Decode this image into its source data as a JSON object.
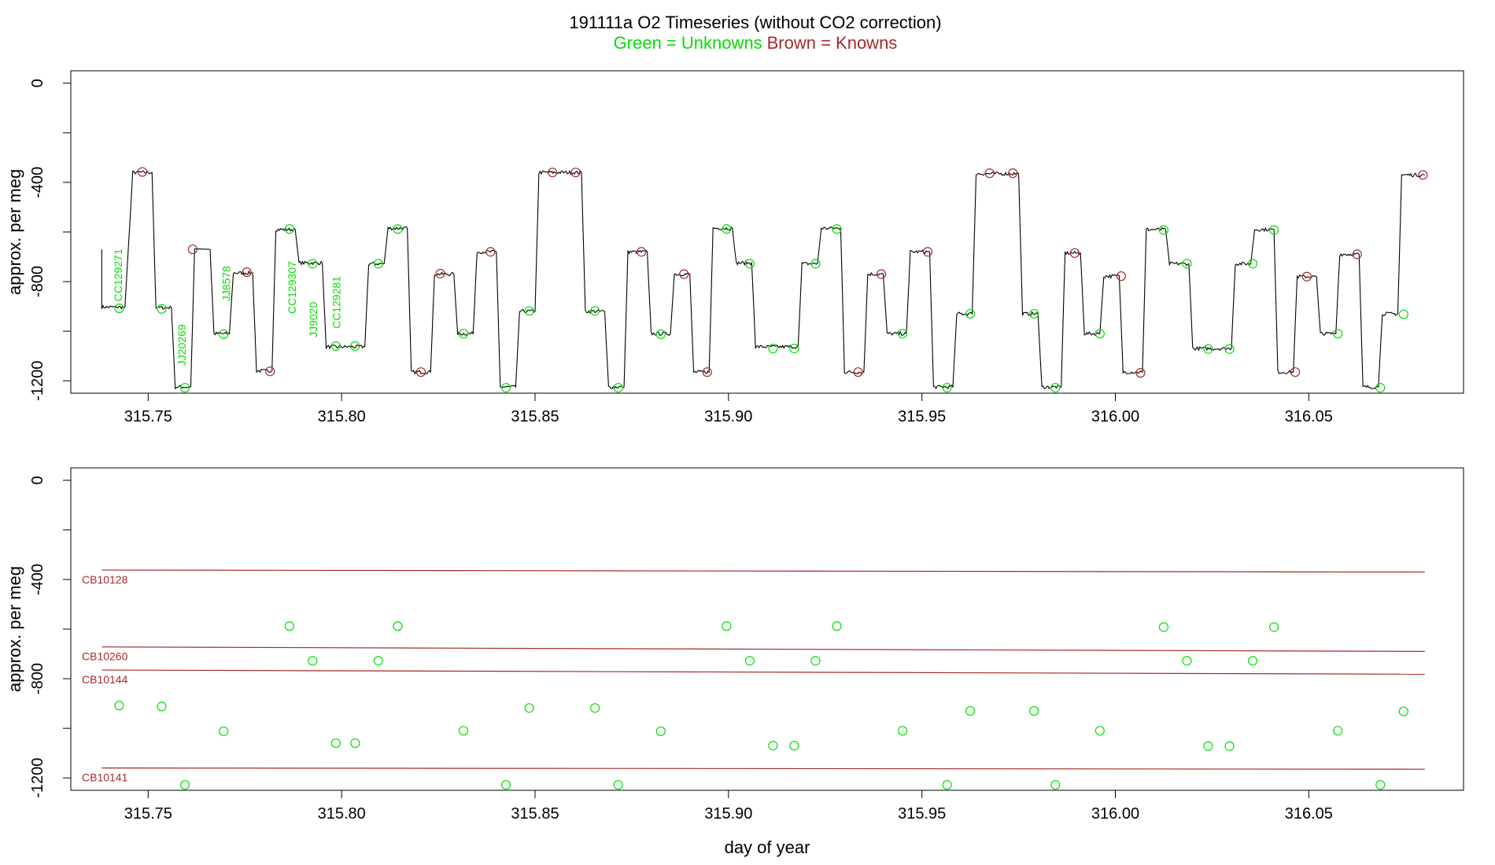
{
  "header": {
    "title": "191111a   O2 Timeseries (without CO2 correction)",
    "legend_unknowns": "Green = Unknowns",
    "legend_knowns": "Brown = Knowns"
  },
  "colors": {
    "unknown": "#00e000",
    "known": "#a52a2a",
    "line": "#000000"
  },
  "chart_data": [
    {
      "type": "line",
      "ylabel": "approx. per meg",
      "xlabel": "",
      "xlim": [
        315.73,
        316.09
      ],
      "ylim": [
        -1250,
        50
      ],
      "xticks": [
        315.75,
        315.8,
        315.85,
        315.9,
        315.95,
        316.0,
        316.05
      ],
      "xtick_labels": [
        "315.75",
        "315.80",
        "315.85",
        "315.90",
        "315.95",
        "316.00",
        "316.05"
      ],
      "yticks": [
        0,
        -200,
        -400,
        -600,
        -800,
        -1000,
        -1200
      ],
      "ytick_labels": [
        "0",
        "-400",
        "-800",
        "-1200"
      ],
      "ytick_label_values": [
        0,
        -400,
        -800,
        -1200
      ],
      "trace_steps": [
        [
          315.738,
          -903
        ],
        [
          315.744,
          -903
        ],
        [
          315.746,
          -360
        ],
        [
          315.751,
          -360
        ],
        [
          315.752,
          -905
        ],
        [
          315.756,
          -905
        ],
        [
          315.757,
          -1225
        ],
        [
          315.761,
          -1225
        ],
        [
          315.762,
          -668
        ],
        [
          315.766,
          -670
        ],
        [
          315.767,
          -1010
        ],
        [
          315.771,
          -1010
        ],
        [
          315.772,
          -765
        ],
        [
          315.777,
          -765
        ],
        [
          315.778,
          -1160
        ],
        [
          315.782,
          -1160
        ],
        [
          315.783,
          -590
        ],
        [
          315.788,
          -590
        ],
        [
          315.789,
          -725
        ],
        [
          315.795,
          -725
        ],
        [
          315.796,
          -1063
        ],
        [
          315.806,
          -1063
        ],
        [
          315.807,
          -728
        ],
        [
          315.811,
          -728
        ],
        [
          315.812,
          -585
        ],
        [
          315.817,
          -585
        ],
        [
          315.818,
          -1165
        ],
        [
          315.823,
          -1165
        ],
        [
          315.824,
          -770
        ],
        [
          315.829,
          -770
        ],
        [
          315.83,
          -1010
        ],
        [
          315.834,
          -1010
        ],
        [
          315.835,
          -680
        ],
        [
          315.84,
          -680
        ],
        [
          315.841,
          -1225
        ],
        [
          315.845,
          -1225
        ],
        [
          315.846,
          -920
        ],
        [
          315.85,
          -920
        ],
        [
          315.851,
          -360
        ],
        [
          315.862,
          -360
        ],
        [
          315.863,
          -920
        ],
        [
          315.868,
          -920
        ],
        [
          315.869,
          -1225
        ],
        [
          315.873,
          -1225
        ],
        [
          315.874,
          -680
        ],
        [
          315.879,
          -680
        ],
        [
          315.88,
          -1010
        ],
        [
          315.885,
          -1010
        ],
        [
          315.886,
          -770
        ],
        [
          315.89,
          -770
        ],
        [
          315.891,
          -1165
        ],
        [
          315.895,
          -1165
        ],
        [
          315.896,
          -585
        ],
        [
          315.901,
          -585
        ],
        [
          315.902,
          -725
        ],
        [
          315.906,
          -725
        ],
        [
          315.907,
          -1063
        ],
        [
          315.918,
          -1063
        ],
        [
          315.919,
          -728
        ],
        [
          315.923,
          -728
        ],
        [
          315.924,
          -585
        ],
        [
          315.929,
          -585
        ],
        [
          315.93,
          -1165
        ],
        [
          315.935,
          -1165
        ],
        [
          315.936,
          -770
        ],
        [
          315.94,
          -770
        ],
        [
          315.941,
          -1010
        ],
        [
          315.946,
          -1010
        ],
        [
          315.947,
          -680
        ],
        [
          315.952,
          -680
        ],
        [
          315.953,
          -1225
        ],
        [
          315.958,
          -1225
        ],
        [
          315.959,
          -930
        ],
        [
          315.963,
          -930
        ],
        [
          315.964,
          -365
        ],
        [
          315.975,
          -365
        ],
        [
          315.976,
          -930
        ],
        [
          315.98,
          -930
        ],
        [
          315.981,
          -1225
        ],
        [
          315.986,
          -1225
        ],
        [
          315.987,
          -685
        ],
        [
          315.991,
          -685
        ],
        [
          315.992,
          -1010
        ],
        [
          315.996,
          -1010
        ],
        [
          315.997,
          -778
        ],
        [
          316.001,
          -778
        ],
        [
          316.002,
          -1165
        ],
        [
          316.007,
          -1165
        ],
        [
          316.008,
          -590
        ],
        [
          316.013,
          -590
        ],
        [
          316.014,
          -728
        ],
        [
          316.019,
          -728
        ],
        [
          316.02,
          -1070
        ],
        [
          316.03,
          -1070
        ],
        [
          316.031,
          -728
        ],
        [
          316.035,
          -728
        ],
        [
          316.036,
          -590
        ],
        [
          316.041,
          -590
        ],
        [
          316.042,
          -1165
        ],
        [
          316.046,
          -1165
        ],
        [
          316.047,
          -780
        ],
        [
          316.052,
          -780
        ],
        [
          316.053,
          -1010
        ],
        [
          316.057,
          -1010
        ],
        [
          316.058,
          -690
        ],
        [
          316.063,
          -690
        ],
        [
          316.064,
          -1225
        ],
        [
          316.068,
          -1225
        ],
        [
          316.069,
          -930
        ],
        [
          316.073,
          -930
        ],
        [
          316.074,
          -370
        ],
        [
          316.08,
          -370
        ]
      ],
      "known_points": [
        [
          315.7485,
          -358
        ],
        [
          315.7615,
          -670
        ],
        [
          315.7755,
          -762
        ],
        [
          315.7815,
          -1162
        ],
        [
          315.8205,
          -1165
        ],
        [
          315.8255,
          -768
        ],
        [
          315.8385,
          -680
        ],
        [
          315.8545,
          -360
        ],
        [
          315.8605,
          -360
        ],
        [
          315.8775,
          -680
        ],
        [
          315.8885,
          -770
        ],
        [
          315.8945,
          -1165
        ],
        [
          315.9335,
          -1165
        ],
        [
          315.9395,
          -770
        ],
        [
          315.9515,
          -680
        ],
        [
          315.9675,
          -363
        ],
        [
          315.9735,
          -363
        ],
        [
          315.9895,
          -685
        ],
        [
          316.0015,
          -778
        ],
        [
          316.0065,
          -1168
        ],
        [
          316.0465,
          -1165
        ],
        [
          316.0495,
          -780
        ],
        [
          316.0625,
          -690
        ],
        [
          316.0795,
          -370
        ]
      ],
      "unknown_points": [
        [
          315.7425,
          -908
        ],
        [
          315.7535,
          -910
        ],
        [
          315.7595,
          -1228
        ],
        [
          315.7695,
          -1012
        ],
        [
          315.7865,
          -588
        ],
        [
          315.7925,
          -728
        ],
        [
          315.7985,
          -1060
        ],
        [
          315.8035,
          -1060
        ],
        [
          315.8095,
          -728
        ],
        [
          315.8145,
          -588
        ],
        [
          315.8315,
          -1010
        ],
        [
          315.8425,
          -1228
        ],
        [
          315.8485,
          -918
        ],
        [
          315.8655,
          -918
        ],
        [
          315.8715,
          -1228
        ],
        [
          315.8825,
          -1012
        ],
        [
          315.8995,
          -588
        ],
        [
          315.9055,
          -728
        ],
        [
          315.9115,
          -1070
        ],
        [
          315.917,
          -1070
        ],
        [
          315.9225,
          -728
        ],
        [
          315.928,
          -588
        ],
        [
          315.945,
          -1010
        ],
        [
          315.9565,
          -1228
        ],
        [
          315.9625,
          -930
        ],
        [
          315.979,
          -930
        ],
        [
          315.9845,
          -1228
        ],
        [
          315.996,
          -1010
        ],
        [
          316.0125,
          -592
        ],
        [
          316.0185,
          -728
        ],
        [
          316.024,
          -1072
        ],
        [
          316.0295,
          -1072
        ],
        [
          316.0355,
          -728
        ],
        [
          316.041,
          -592
        ],
        [
          316.0575,
          -1010
        ],
        [
          316.0685,
          -1228
        ],
        [
          316.0745,
          -932
        ]
      ],
      "vertical_labels": [
        {
          "x": 315.7432,
          "y": -880,
          "text": "CC129271"
        },
        {
          "x": 315.7597,
          "y": -1140,
          "text": "JJ20269"
        },
        {
          "x": 315.7712,
          "y": -880,
          "text": "JJ8578"
        },
        {
          "x": 315.7882,
          "y": -930,
          "text": "CC129307"
        },
        {
          "x": 315.7937,
          "y": -1025,
          "text": "JJ9020"
        },
        {
          "x": 315.7997,
          "y": -990,
          "text": "CC129281"
        }
      ]
    },
    {
      "type": "scatter",
      "ylabel": "approx. per meg",
      "xlabel": "day of year",
      "xlim": [
        315.73,
        316.09
      ],
      "ylim": [
        -1250,
        50
      ],
      "xticks": [
        315.75,
        315.8,
        315.85,
        315.9,
        315.95,
        316.0,
        316.05
      ],
      "xtick_labels": [
        "315.75",
        "315.80",
        "315.85",
        "315.90",
        "315.95",
        "316.00",
        "316.05"
      ],
      "yticks": [
        0,
        -200,
        -400,
        -600,
        -800,
        -1000,
        -1200
      ],
      "ytick_labels": [
        "0",
        "-400",
        "-800",
        "-1200"
      ],
      "ytick_label_values": [
        0,
        -400,
        -800,
        -1200
      ],
      "known_lines": [
        {
          "name": "CB10128",
          "x": [
            315.738,
            316.08
          ],
          "y": [
            -362,
            -370
          ]
        },
        {
          "name": "CB10260",
          "x": [
            315.738,
            316.08
          ],
          "y": [
            -672,
            -690
          ]
        },
        {
          "name": "CB10144",
          "x": [
            315.738,
            316.08
          ],
          "y": [
            -765,
            -782
          ]
        },
        {
          "name": "CB10141",
          "x": [
            315.738,
            316.08
          ],
          "y": [
            -1160,
            -1165
          ]
        }
      ],
      "unknown_points": [
        [
          315.7425,
          -908
        ],
        [
          315.7535,
          -912
        ],
        [
          315.7595,
          -1228
        ],
        [
          315.7695,
          -1012
        ],
        [
          315.7865,
          -588
        ],
        [
          315.7925,
          -728
        ],
        [
          315.7985,
          -1060
        ],
        [
          315.8035,
          -1060
        ],
        [
          315.8095,
          -728
        ],
        [
          315.8145,
          -588
        ],
        [
          315.8315,
          -1010
        ],
        [
          315.8425,
          -1228
        ],
        [
          315.8485,
          -918
        ],
        [
          315.8655,
          -918
        ],
        [
          315.8715,
          -1228
        ],
        [
          315.8825,
          -1012
        ],
        [
          315.8995,
          -588
        ],
        [
          315.9055,
          -728
        ],
        [
          315.9115,
          -1070
        ],
        [
          315.917,
          -1070
        ],
        [
          315.9225,
          -728
        ],
        [
          315.928,
          -588
        ],
        [
          315.945,
          -1010
        ],
        [
          315.9565,
          -1228
        ],
        [
          315.9625,
          -930
        ],
        [
          315.979,
          -930
        ],
        [
          315.9845,
          -1228
        ],
        [
          315.996,
          -1010
        ],
        [
          316.0125,
          -592
        ],
        [
          316.0185,
          -728
        ],
        [
          316.024,
          -1072
        ],
        [
          316.0295,
          -1072
        ],
        [
          316.0355,
          -728
        ],
        [
          316.041,
          -592
        ],
        [
          316.0575,
          -1010
        ],
        [
          316.0685,
          -1228
        ],
        [
          316.0745,
          -932
        ]
      ]
    }
  ]
}
